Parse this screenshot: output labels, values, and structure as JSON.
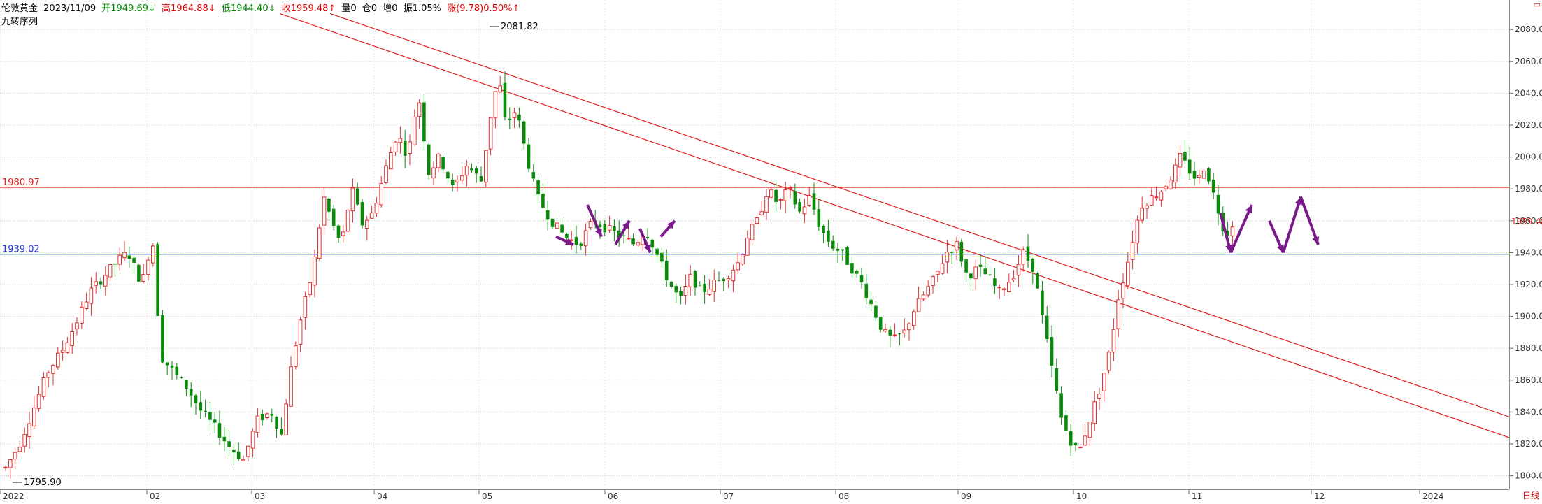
{
  "header": {
    "symbol": "伦敦黄金",
    "date": "2023/11/09",
    "open": "开1949.69↓",
    "high": "高1964.88↓",
    "low": "低1944.40↓",
    "close": "收1959.48↑",
    "volume": "量0",
    "position": "仓0",
    "increase": "增0",
    "amplitude": "振1.05%",
    "change": "涨(9.78)0.50%↑"
  },
  "indicator": "九转序列",
  "footer_label": "日线",
  "colors": {
    "up": "#e03030",
    "down": "#0a8a0a",
    "trend": "#e02020",
    "blue": "#2030e0",
    "purple": "#7a1a8a",
    "seq_red": "#e020e0",
    "seq_green": "#20c020"
  },
  "chart_data": {
    "type": "candlestick",
    "ylim": [
      1795,
      2095
    ],
    "y_ticks": [
      1800,
      1820,
      1840,
      1860,
      1880,
      1900,
      1920,
      1940,
      1960,
      1980,
      2000,
      2020,
      2040,
      2060,
      2080
    ],
    "x_ticks": [
      {
        "label": "2022",
        "t": 0
      },
      {
        "label": "02",
        "t": 210
      },
      {
        "label": "03",
        "t": 360
      },
      {
        "label": "04",
        "t": 535
      },
      {
        "label": "05",
        "t": 685
      },
      {
        "label": "06",
        "t": 865
      },
      {
        "label": "07",
        "t": 1030
      },
      {
        "label": "08",
        "t": 1195
      },
      {
        "label": "09",
        "t": 1370
      },
      {
        "label": "10",
        "t": 1535
      },
      {
        "label": "11",
        "t": 1700
      },
      {
        "label": "12",
        "t": 1875
      },
      {
        "label": "2024",
        "t": 2030
      }
    ],
    "t_range": [
      0,
      2158
    ],
    "horizontal_lines": [
      {
        "label": "1980.97",
        "value": 1980.97,
        "color": "#e02020"
      },
      {
        "label": "1939.02",
        "value": 1939.02,
        "color": "#2030e0"
      }
    ],
    "current_price": {
      "label": "1959.48",
      "value": 1959.48
    },
    "annotations": [
      {
        "label": "2081.82",
        "t": 700,
        "value": 2081.82
      },
      {
        "label": "1795.90",
        "t": 18,
        "value": 1795.9
      }
    ],
    "trend_lines": [
      {
        "t1": 400,
        "v1": 2090,
        "t2": 2158,
        "v2": 1824
      },
      {
        "t1": 472,
        "v1": 2090,
        "t2": 2158,
        "v2": 1837
      }
    ],
    "anchors": [
      [
        0,
        1805
      ],
      [
        20,
        1820
      ],
      [
        40,
        1842
      ],
      [
        60,
        1865
      ],
      [
        80,
        1878
      ],
      [
        100,
        1895
      ],
      [
        120,
        1915
      ],
      [
        140,
        1925
      ],
      [
        160,
        1935
      ],
      [
        175,
        1940
      ],
      [
        195,
        1920
      ],
      [
        210,
        1950
      ],
      [
        222,
        1875
      ],
      [
        240,
        1865
      ],
      [
        260,
        1855
      ],
      [
        280,
        1840
      ],
      [
        300,
        1830
      ],
      [
        320,
        1818
      ],
      [
        340,
        1810
      ],
      [
        360,
        1835
      ],
      [
        380,
        1840
      ],
      [
        395,
        1825
      ],
      [
        405,
        1860
      ],
      [
        420,
        1895
      ],
      [
        440,
        1930
      ],
      [
        455,
        1975
      ],
      [
        470,
        1955
      ],
      [
        480,
        1945
      ],
      [
        495,
        1980
      ],
      [
        510,
        1958
      ],
      [
        525,
        1965
      ],
      [
        545,
        1995
      ],
      [
        560,
        2015
      ],
      [
        575,
        2000
      ],
      [
        590,
        2040
      ],
      [
        605,
        1990
      ],
      [
        620,
        2000
      ],
      [
        640,
        1980
      ],
      [
        660,
        1995
      ],
      [
        680,
        1985
      ],
      [
        695,
        2030
      ],
      [
        705,
        2050
      ],
      [
        715,
        2020
      ],
      [
        730,
        2030
      ],
      [
        745,
        2000
      ],
      [
        760,
        1975
      ],
      [
        780,
        1960
      ],
      [
        800,
        1950
      ],
      [
        820,
        1945
      ],
      [
        840,
        1960
      ],
      [
        860,
        1955
      ],
      [
        880,
        1950
      ],
      [
        900,
        1945
      ],
      [
        915,
        1955
      ],
      [
        935,
        1935
      ],
      [
        950,
        1920
      ],
      [
        965,
        1910
      ],
      [
        980,
        1925
      ],
      [
        995,
        1915
      ],
      [
        1010,
        1920
      ],
      [
        1030,
        1925
      ],
      [
        1050,
        1935
      ],
      [
        1060,
        1950
      ],
      [
        1075,
        1960
      ],
      [
        1090,
        1980
      ],
      [
        1105,
        1970
      ],
      [
        1120,
        1980
      ],
      [
        1135,
        1965
      ],
      [
        1150,
        1975
      ],
      [
        1165,
        1955
      ],
      [
        1180,
        1945
      ],
      [
        1195,
        1940
      ],
      [
        1210,
        1930
      ],
      [
        1225,
        1920
      ],
      [
        1240,
        1905
      ],
      [
        1255,
        1890
      ],
      [
        1270,
        1885
      ],
      [
        1285,
        1890
      ],
      [
        1300,
        1905
      ],
      [
        1315,
        1915
      ],
      [
        1330,
        1925
      ],
      [
        1345,
        1940
      ],
      [
        1360,
        1945
      ],
      [
        1375,
        1925
      ],
      [
        1390,
        1930
      ],
      [
        1405,
        1925
      ],
      [
        1420,
        1915
      ],
      [
        1440,
        1925
      ],
      [
        1455,
        1940
      ],
      [
        1470,
        1930
      ],
      [
        1480,
        1905
      ],
      [
        1495,
        1870
      ],
      [
        1510,
        1835
      ],
      [
        1525,
        1820
      ],
      [
        1535,
        1815
      ],
      [
        1550,
        1835
      ],
      [
        1565,
        1855
      ],
      [
        1580,
        1880
      ],
      [
        1590,
        1910
      ],
      [
        1605,
        1935
      ],
      [
        1615,
        1955
      ],
      [
        1625,
        1970
      ],
      [
        1640,
        1975
      ],
      [
        1655,
        1980
      ],
      [
        1670,
        1990
      ],
      [
        1680,
        2000
      ],
      [
        1695,
        1990
      ],
      [
        1705,
        1985
      ],
      [
        1715,
        1995
      ],
      [
        1725,
        1980
      ],
      [
        1735,
        1965
      ],
      [
        1745,
        1950
      ],
      [
        1755,
        1959
      ]
    ]
  }
}
